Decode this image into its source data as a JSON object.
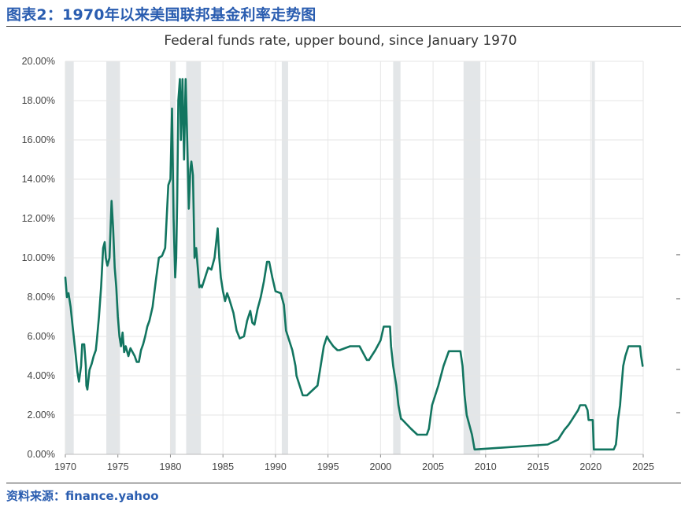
{
  "figure": {
    "title": "图表2：1970年以来美国联邦基金利率走势图",
    "source": "资料来源：finance.yahoo"
  },
  "colors": {
    "line": "#127560",
    "recession": "#e3e6e8",
    "grid": "#e6e6e6",
    "title_blue": "#2a5db0"
  },
  "chart_data": {
    "type": "line",
    "title": "Federal funds rate, upper bound, since January 1970",
    "xlabel": "",
    "ylabel": "",
    "xlim": [
      1970,
      2025
    ],
    "ylim": [
      0,
      20
    ],
    "x_ticks": [
      "1970",
      "1975",
      "1980",
      "1985",
      "1990",
      "1995",
      "2000",
      "2005",
      "2010",
      "2015",
      "2020",
      "2025"
    ],
    "y_ticks": [
      "0.00%",
      "2.00%",
      "4.00%",
      "6.00%",
      "8.00%",
      "10.00%",
      "12.00%",
      "14.00%",
      "16.00%",
      "18.00%",
      "20.00%"
    ],
    "grid": true,
    "recessions": [
      [
        1970.0,
        1970.8
      ],
      [
        1973.9,
        1975.2
      ],
      [
        1980.0,
        1980.5
      ],
      [
        1981.5,
        1982.9
      ],
      [
        1990.6,
        1991.2
      ],
      [
        2001.2,
        2001.9
      ],
      [
        2007.9,
        2009.5
      ],
      [
        2020.1,
        2020.4
      ]
    ],
    "x": [
      1970.0,
      1970.15,
      1970.3,
      1970.5,
      1970.7,
      1970.9,
      1971.0,
      1971.15,
      1971.3,
      1971.5,
      1971.6,
      1971.8,
      1971.95,
      1972.0,
      1972.1,
      1972.3,
      1972.5,
      1972.7,
      1972.9,
      1973.0,
      1973.2,
      1973.4,
      1973.6,
      1973.75,
      1973.85,
      1974.0,
      1974.2,
      1974.4,
      1974.55,
      1974.7,
      1974.85,
      1975.0,
      1975.15,
      1975.3,
      1975.45,
      1975.6,
      1975.75,
      1975.9,
      1976.0,
      1976.2,
      1976.4,
      1976.6,
      1976.8,
      1977.0,
      1977.2,
      1977.4,
      1977.6,
      1977.8,
      1978.0,
      1978.3,
      1978.6,
      1978.9,
      1979.2,
      1979.5,
      1979.8,
      1980.0,
      1980.15,
      1980.3,
      1980.45,
      1980.55,
      1980.65,
      1980.75,
      1980.9,
      1981.0,
      1981.15,
      1981.3,
      1981.45,
      1981.6,
      1981.75,
      1981.9,
      1982.0,
      1982.15,
      1982.3,
      1982.45,
      1982.6,
      1982.75,
      1982.9,
      1983.0,
      1983.3,
      1983.6,
      1983.9,
      1984.2,
      1984.5,
      1984.65,
      1984.8,
      1985.0,
      1985.2,
      1985.4,
      1985.6,
      1986.0,
      1986.3,
      1986.6,
      1987.0,
      1987.3,
      1987.6,
      1987.8,
      1988.0,
      1988.3,
      1988.6,
      1988.9,
      1989.2,
      1989.4,
      1989.7,
      1990.0,
      1990.5,
      1990.8,
      1991.0,
      1991.3,
      1991.6,
      1991.9,
      1992.0,
      1992.3,
      1992.6,
      1993.0,
      1994.0,
      1994.3,
      1994.6,
      1994.9,
      1995.1,
      1995.5,
      1995.9,
      1996.1,
      1997.1,
      1998.0,
      1998.7,
      1998.9,
      1999.5,
      1999.7,
      2000.0,
      2000.3,
      2000.5,
      2000.9,
      2001.0,
      2001.2,
      2001.5,
      2001.7,
      2001.95,
      2002.0,
      2002.9,
      2003.5,
      2004.4,
      2004.6,
      2004.9,
      2005.5,
      2006.0,
      2006.5,
      2007.6,
      2007.8,
      2008.0,
      2008.2,
      2008.7,
      2008.95,
      2009.0,
      2015.9,
      2016.9,
      2017.2,
      2017.5,
      2017.9,
      2018.2,
      2018.5,
      2018.8,
      2019.0,
      2019.5,
      2019.7,
      2019.8,
      2020.2,
      2020.3,
      2022.2,
      2022.4,
      2022.5,
      2022.6,
      2022.8,
      2022.9,
      2023.1,
      2023.3,
      2023.6,
      2024.7,
      2024.8,
      2024.95
    ],
    "values": [
      9.0,
      8.0,
      8.2,
      7.5,
      6.5,
      5.5,
      5.0,
      4.2,
      3.7,
      4.5,
      5.6,
      5.6,
      4.5,
      3.5,
      3.3,
      4.3,
      4.6,
      5.0,
      5.3,
      5.8,
      7.0,
      8.5,
      10.5,
      10.8,
      10.0,
      9.6,
      10.0,
      12.9,
      11.5,
      9.5,
      8.5,
      7.0,
      6.0,
      5.5,
      6.2,
      5.2,
      5.5,
      5.2,
      5.0,
      5.4,
      5.2,
      5.0,
      4.7,
      4.7,
      5.3,
      5.6,
      6.0,
      6.5,
      6.8,
      7.5,
      8.8,
      10.0,
      10.1,
      10.5,
      13.7,
      14.0,
      17.6,
      12.0,
      9.0,
      10.0,
      13.0,
      18.0,
      19.1,
      16.0,
      19.1,
      15.0,
      19.1,
      16.0,
      12.5,
      14.5,
      14.9,
      14.2,
      10.0,
      10.5,
      9.5,
      8.5,
      8.6,
      8.5,
      9.0,
      9.5,
      9.4,
      10.0,
      11.5,
      10.0,
      9.0,
      8.3,
      7.8,
      8.2,
      7.9,
      7.2,
      6.3,
      5.9,
      6.0,
      6.8,
      7.3,
      6.7,
      6.6,
      7.4,
      8.0,
      8.8,
      9.8,
      9.8,
      9.0,
      8.3,
      8.2,
      7.6,
      6.3,
      5.8,
      5.3,
      4.5,
      4.0,
      3.5,
      3.0,
      3.0,
      3.5,
      4.5,
      5.5,
      6.0,
      5.8,
      5.5,
      5.3,
      5.3,
      5.5,
      5.5,
      4.8,
      4.8,
      5.3,
      5.5,
      5.8,
      6.5,
      6.5,
      6.5,
      5.5,
      4.5,
      3.5,
      2.5,
      1.8,
      1.8,
      1.3,
      1.0,
      1.0,
      1.3,
      2.5,
      3.5,
      4.5,
      5.25,
      5.25,
      4.5,
      3.0,
      2.0,
      1.0,
      0.25,
      0.25,
      0.5,
      0.75,
      1.0,
      1.25,
      1.5,
      1.75,
      2.0,
      2.25,
      2.5,
      2.5,
      2.25,
      1.75,
      1.75,
      0.25,
      0.25,
      0.5,
      1.0,
      1.75,
      2.5,
      3.25,
      4.5,
      5.0,
      5.5,
      5.5,
      5.0,
      4.5
    ]
  }
}
